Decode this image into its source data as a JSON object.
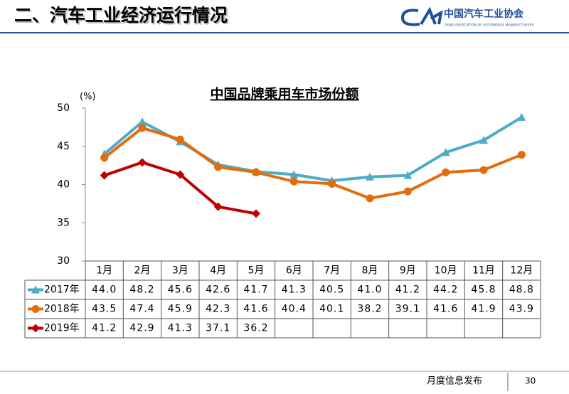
{
  "header": {
    "title": "二、汽车工业经济运行情况",
    "org_name": "中国汽车工业协会",
    "org_name_en": "CHINA ASSOCIATION OF AUTOMOBILE MANUFACTURERS"
  },
  "footer": {
    "label": "月度信息发布",
    "page": "30"
  },
  "chart_data": {
    "type": "line",
    "title": "中国品牌乘用车市场份额",
    "y_unit": "(%)",
    "categories": [
      "1月",
      "2月",
      "3月",
      "4月",
      "5月",
      "6月",
      "7月",
      "8月",
      "9月",
      "10月",
      "11月",
      "12月"
    ],
    "series": [
      {
        "name": "2017年",
        "color": "#4bacc6",
        "marker": "triangle",
        "values": [
          44.0,
          48.2,
          45.6,
          42.6,
          41.7,
          41.3,
          40.5,
          41.0,
          41.2,
          44.2,
          45.8,
          48.8
        ],
        "value_labels": [
          "44.0",
          "48.2",
          "45.6",
          "42.6",
          "41.7",
          "41.3",
          "40.5",
          "41.0",
          "41.2",
          "44.2",
          "45.8",
          "48.8"
        ]
      },
      {
        "name": "2018年",
        "color": "#e46c0a",
        "marker": "circle",
        "values": [
          43.5,
          47.4,
          45.9,
          42.3,
          41.6,
          40.4,
          40.1,
          38.2,
          39.1,
          41.6,
          41.9,
          43.9
        ],
        "value_labels": [
          "43.5",
          "47.4",
          "45.9",
          "42.3",
          "41.6",
          "40.4",
          "40.1",
          "38.2",
          "39.1",
          "41.6",
          "41.9",
          "43.9"
        ]
      },
      {
        "name": "2019年",
        "color": "#c00000",
        "marker": "diamond",
        "values": [
          41.2,
          42.9,
          41.3,
          37.1,
          36.2,
          null,
          null,
          null,
          null,
          null,
          null,
          null
        ],
        "value_labels": [
          "41.2",
          "42.9",
          "41.3",
          "37.1",
          "36.2",
          null,
          null,
          null,
          null,
          null,
          null,
          null
        ]
      }
    ],
    "ylim": [
      30,
      50
    ],
    "yticks": [
      30,
      35,
      40,
      45,
      50
    ]
  }
}
